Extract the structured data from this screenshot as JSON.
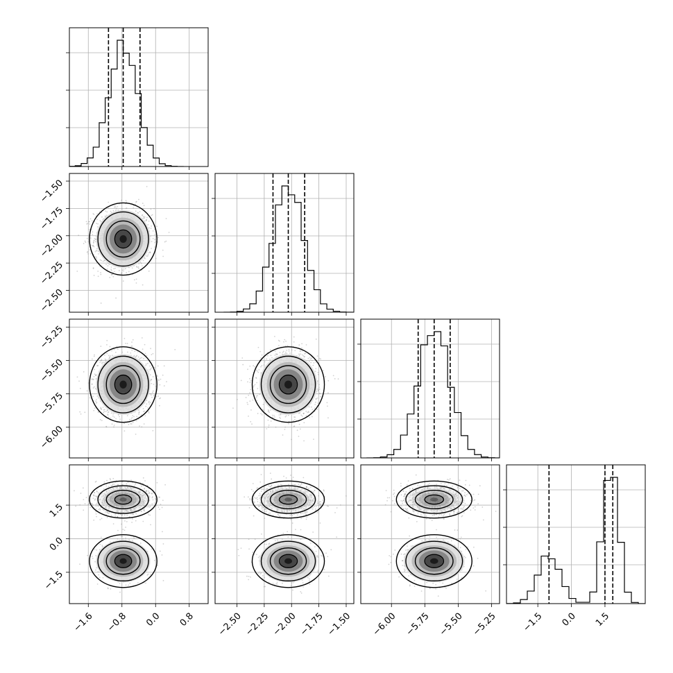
{
  "chart_data": {
    "type": "corner",
    "n_params": 4,
    "grid": true,
    "params": [
      {
        "range": [
          -2.05,
          1.25
        ],
        "ticks": [
          -1.6,
          -0.8,
          0.0,
          0.8
        ],
        "tick_labels": [
          "−1.6",
          "−0.8",
          "0.0",
          "0.8"
        ],
        "quantiles": [
          -1.12,
          -0.77,
          -0.37
        ],
        "hist_type": "gaussian",
        "mean": -0.77,
        "sd": 0.34,
        "bins": 20
      },
      {
        "range": [
          -2.7,
          -1.43
        ],
        "ticks": [
          -2.5,
          -2.25,
          -2.0,
          -1.75,
          -1.5
        ],
        "tick_labels": [
          "−2.50",
          "−2.25",
          "−2.00",
          "−1.75",
          "−1.50"
        ],
        "quantiles": [
          -2.17,
          -2.03,
          -1.88
        ],
        "hist_type": "gaussian",
        "mean": -2.03,
        "sd": 0.14,
        "bins": 20
      },
      {
        "range": [
          -6.23,
          -5.19
        ],
        "ticks": [
          -6.0,
          -5.75,
          -5.5,
          -5.25
        ],
        "tick_labels": [
          "−6.00",
          "−5.75",
          "−5.50",
          "−5.25"
        ],
        "quantiles": [
          -5.8,
          -5.68,
          -5.56
        ],
        "hist_type": "gaussian",
        "mean": -5.68,
        "sd": 0.12,
        "bins": 20
      },
      {
        "range": [
          -2.9,
          3.3
        ],
        "ticks": [
          -1.5,
          0.0,
          1.5
        ],
        "tick_labels": [
          "−1.5",
          "0.0",
          "1.5"
        ],
        "quantiles": [
          -1.0,
          1.5,
          1.85
        ],
        "hist_type": "bimodal",
        "modes": [
          {
            "mean": -1.0,
            "sd": 0.5,
            "weight": 0.33
          },
          {
            "mean": 1.75,
            "sd": 0.35,
            "weight": 0.67
          }
        ],
        "bins": 20
      }
    ],
    "diag_ytick_fractions": [
      0.28,
      0.55,
      0.82
    ],
    "contour_levels": [
      "0.5σ",
      "1.0σ",
      "1.5σ",
      "2.0σ"
    ],
    "bimodal_row_contours": {
      "upper_mode_y": 1.75,
      "lower_mode_y": -1.0
    }
  }
}
